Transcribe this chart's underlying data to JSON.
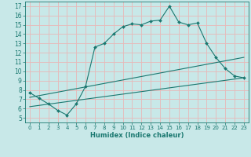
{
  "xlabel": "Humidex (Indice chaleur)",
  "xlim": [
    -0.5,
    23.5
  ],
  "ylim": [
    4.5,
    17.5
  ],
  "xticks": [
    0,
    1,
    2,
    3,
    4,
    5,
    6,
    7,
    8,
    9,
    10,
    11,
    12,
    13,
    14,
    15,
    16,
    17,
    18,
    19,
    20,
    21,
    22,
    23
  ],
  "yticks": [
    5,
    6,
    7,
    8,
    9,
    10,
    11,
    12,
    13,
    14,
    15,
    16,
    17
  ],
  "bg_color": "#c8e8e8",
  "grid_color": "#e8b8b8",
  "line_color": "#1a7870",
  "line1_x": [
    0,
    1,
    2,
    3,
    4,
    5,
    6,
    7,
    8,
    9,
    10,
    11,
    12,
    13,
    14,
    15,
    16,
    17,
    18,
    19,
    20,
    21,
    22,
    23
  ],
  "line1_y": [
    7.7,
    7.1,
    6.5,
    5.8,
    5.3,
    6.5,
    8.4,
    12.6,
    13.0,
    14.0,
    14.8,
    15.1,
    15.0,
    15.4,
    15.5,
    17.0,
    15.3,
    15.0,
    15.2,
    13.0,
    11.5,
    10.3,
    9.5,
    9.3
  ],
  "line2_x": [
    0,
    23
  ],
  "line2_y": [
    6.2,
    9.3
  ],
  "line3_x": [
    0,
    23
  ],
  "line3_y": [
    7.2,
    11.5
  ]
}
